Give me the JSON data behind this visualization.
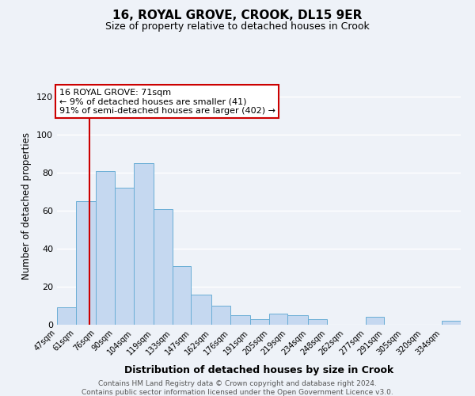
{
  "title": "16, ROYAL GROVE, CROOK, DL15 9ER",
  "subtitle": "Size of property relative to detached houses in Crook",
  "xlabel": "Distribution of detached houses by size in Crook",
  "ylabel": "Number of detached properties",
  "bar_labels": [
    "47sqm",
    "61sqm",
    "76sqm",
    "90sqm",
    "104sqm",
    "119sqm",
    "133sqm",
    "147sqm",
    "162sqm",
    "176sqm",
    "191sqm",
    "205sqm",
    "219sqm",
    "234sqm",
    "248sqm",
    "262sqm",
    "277sqm",
    "291sqm",
    "305sqm",
    "320sqm",
    "334sqm"
  ],
  "bar_values": [
    9,
    65,
    81,
    72,
    85,
    61,
    31,
    16,
    10,
    5,
    3,
    6,
    5,
    3,
    0,
    0,
    4,
    0,
    0,
    0,
    2
  ],
  "bar_color": "#c5d8f0",
  "bar_edge_color": "#6aaed6",
  "ylim": [
    0,
    125
  ],
  "yticks": [
    0,
    20,
    40,
    60,
    80,
    100,
    120
  ],
  "property_line_x": 71,
  "annotation_line1": "16 ROYAL GROVE: 71sqm",
  "annotation_line2": "← 9% of detached houses are smaller (41)",
  "annotation_line3": "91% of semi-detached houses are larger (402) →",
  "annotation_box_color": "#ffffff",
  "annotation_box_edge": "#cc0000",
  "vline_color": "#cc0000",
  "footer1": "Contains HM Land Registry data © Crown copyright and database right 2024.",
  "footer2": "Contains public sector information licensed under the Open Government Licence v3.0.",
  "background_color": "#eef2f8",
  "grid_color": "#ffffff",
  "bin_edges": [
    47,
    61,
    76,
    90,
    104,
    119,
    133,
    147,
    162,
    176,
    191,
    205,
    219,
    234,
    248,
    262,
    277,
    291,
    305,
    320,
    334,
    348
  ]
}
